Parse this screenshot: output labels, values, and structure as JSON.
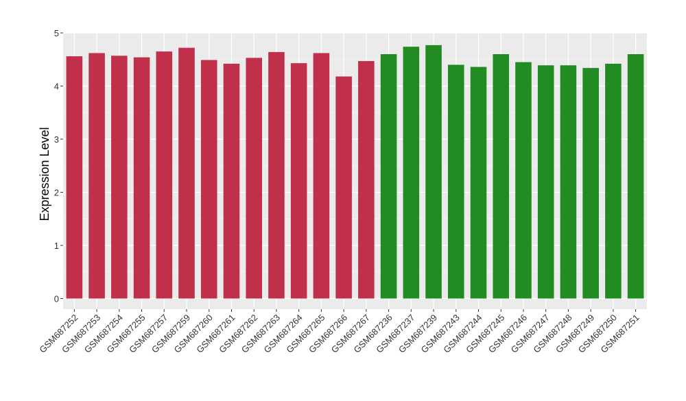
{
  "chart_data": {
    "type": "bar",
    "ylabel": "Expression Level",
    "ylim": [
      -0.2,
      5.0
    ],
    "yticks": [
      0,
      1,
      2,
      3,
      4,
      5
    ],
    "grid": true,
    "categories": [
      "GSM687252",
      "GSM687253",
      "GSM687254",
      "GSM687255",
      "GSM687257",
      "GSM687259",
      "GSM687260",
      "GSM687261",
      "GSM687262",
      "GSM687263",
      "GSM687264",
      "GSM687265",
      "GSM687266",
      "GSM687267",
      "GSM687236",
      "GSM687237",
      "GSM687239",
      "GSM687243",
      "GSM687244",
      "GSM687245",
      "GSM687246",
      "GSM687247",
      "GSM687248",
      "GSM687249",
      "GSM687250",
      "GSM687251"
    ],
    "values": [
      4.56,
      4.62,
      4.57,
      4.54,
      4.65,
      4.72,
      4.49,
      4.42,
      4.53,
      4.64,
      4.43,
      4.62,
      4.18,
      4.47,
      4.6,
      4.74,
      4.77,
      4.4,
      4.36,
      4.6,
      4.45,
      4.39,
      4.39,
      4.34,
      4.42,
      4.6
    ],
    "groups": [
      0,
      0,
      0,
      0,
      0,
      0,
      0,
      0,
      0,
      0,
      0,
      0,
      0,
      0,
      1,
      1,
      1,
      1,
      1,
      1,
      1,
      1,
      1,
      1,
      1,
      1
    ],
    "group_colors": [
      "#c0304a",
      "#228b22"
    ],
    "colors": {
      "panel": "#ebebeb",
      "grid_major": "#ffffff",
      "grid_minor": "#f5f5f5",
      "text": "#333333"
    }
  }
}
